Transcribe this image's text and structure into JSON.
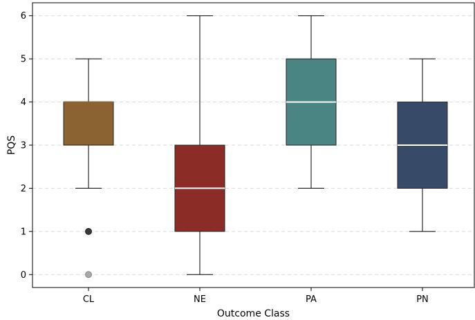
{
  "chart_data": {
    "type": "box",
    "xlabel": "Outcome Class",
    "ylabel": "PQS",
    "ylim": [
      -0.3,
      6.3
    ],
    "yticks": [
      0,
      1,
      2,
      3,
      4,
      5,
      6
    ],
    "grid": "y-dashed",
    "categories": [
      "CL",
      "NE",
      "PA",
      "PN"
    ],
    "boxes": [
      {
        "category": "CL",
        "whisker_low": 2,
        "q1": 3,
        "median": 4,
        "q3": 4,
        "whisker_high": 5,
        "outliers": [
          1,
          0
        ],
        "color": "#8B6232"
      },
      {
        "category": "NE",
        "whisker_low": 0,
        "q1": 1,
        "median": 2,
        "q3": 3,
        "whisker_high": 6,
        "outliers": [],
        "color": "#8B2C27"
      },
      {
        "category": "PA",
        "whisker_low": 2,
        "q1": 3,
        "median": 4,
        "q3": 5,
        "whisker_high": 6,
        "outliers": [],
        "color": "#4A8584"
      },
      {
        "category": "PN",
        "whisker_low": 1,
        "q1": 2,
        "median": 3,
        "q3": 4,
        "whisker_high": 5,
        "outliers": [],
        "color": "#374A68"
      }
    ],
    "outlier_colors": [
      "#3a3a3a",
      "#a8a8a8"
    ]
  }
}
